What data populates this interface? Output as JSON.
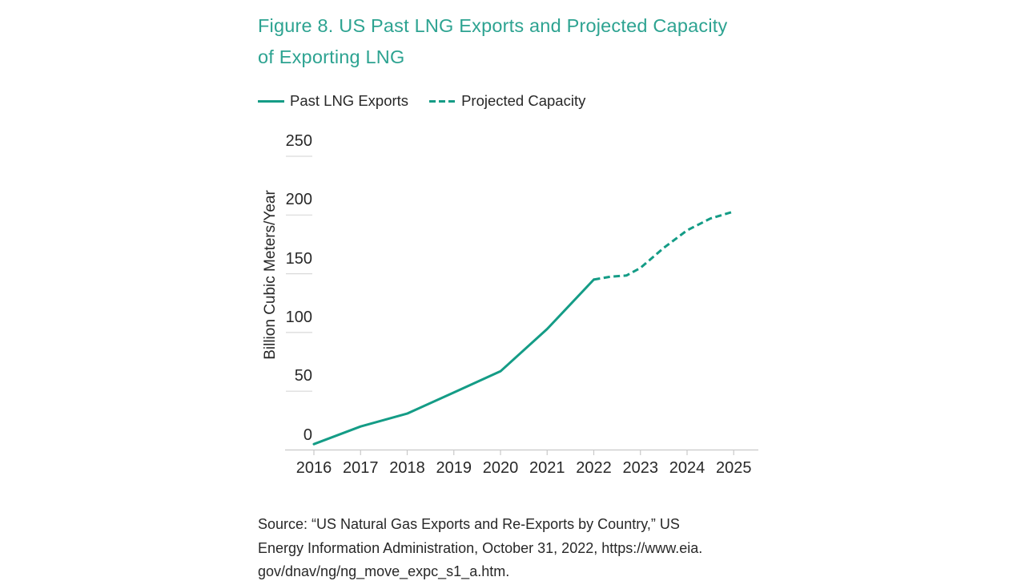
{
  "title": {
    "line1": "Figure 8. US Past LNG Exports and Projected Capacity",
    "line2": "of Exporting LNG"
  },
  "legend": {
    "items": [
      {
        "label": "Past LNG Exports",
        "style": "solid"
      },
      {
        "label": "Projected Capacity",
        "style": "dashed"
      }
    ]
  },
  "y_axis": {
    "title": "Billion Cubic Meters/Year"
  },
  "source": {
    "lines": [
      "Source: “US Natural Gas Exports and Re-Exports by Country,” US",
      "Energy Information Administration, October 31, 2022, https://www.eia.",
      "gov/dnav/ng/ng_move_expc_s1_a.htm."
    ]
  },
  "colors": {
    "accent_teal": "#2da391",
    "line_teal": "#149c86",
    "text_dark": "#282828",
    "axis_gray": "#c9c9c9",
    "tick_gray": "#d9d9d9"
  },
  "chart_data": {
    "type": "line",
    "title": "Figure 8. US Past LNG Exports and Projected Capacity of Exporting LNG",
    "xlabel": "",
    "ylabel": "Billion Cubic Meters/Year",
    "units": "billion cubic meters per year",
    "x_ticks": [
      2016,
      2017,
      2018,
      2019,
      2020,
      2021,
      2022,
      2023,
      2024,
      2025
    ],
    "y_ticks": [
      0,
      50,
      100,
      150,
      200,
      250
    ],
    "xlim": [
      2016,
      2025
    ],
    "ylim": [
      0,
      250
    ],
    "grid": false,
    "legend_position": "top-left",
    "series": [
      {
        "name": "Past LNG Exports",
        "style": "solid",
        "points": [
          [
            2016,
            5
          ],
          [
            2017,
            20
          ],
          [
            2018,
            31
          ],
          [
            2019,
            49
          ],
          [
            2020,
            67
          ],
          [
            2021,
            103
          ],
          [
            2022,
            145
          ]
        ]
      },
      {
        "name": "Projected Capacity",
        "style": "dashed",
        "points": [
          [
            2022,
            145
          ],
          [
            2022.35,
            147.5
          ],
          [
            2022.7,
            148.5
          ],
          [
            2023,
            155
          ],
          [
            2023.5,
            172
          ],
          [
            2024,
            187
          ],
          [
            2024.5,
            197
          ],
          [
            2025,
            203
          ]
        ]
      }
    ]
  }
}
